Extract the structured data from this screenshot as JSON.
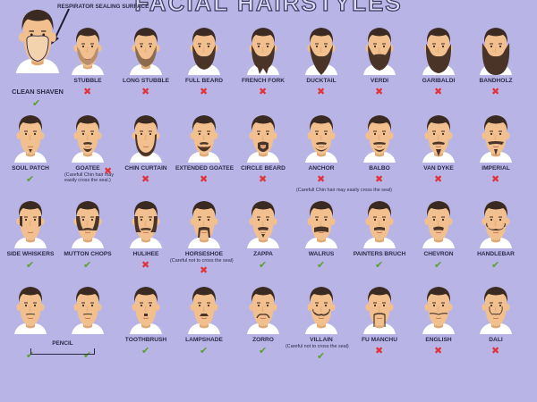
{
  "title": "FACIAL HAIRSTYLES",
  "callout": "RESPIRATOR SEALING SURFACE",
  "colors": {
    "background": "#b9b4e6",
    "skin": "#f1c08e",
    "skin_shadow": "#e2a872",
    "hair": "#3b2a22",
    "beard": "#4a3428",
    "shirt": "#ffffff",
    "ok": "#5aa02c",
    "no": "#e0343a",
    "respirator_area": "#f3d2ae"
  },
  "icons": {
    "ok": "check-icon",
    "no": "x-icon"
  },
  "clean_shaven": {
    "label": "CLEAN SHAVEN",
    "ok": true
  },
  "rows": [
    [
      {
        "label": "STUBBLE",
        "ok": false,
        "style": "stubble"
      },
      {
        "label": "LONG STUBBLE",
        "ok": false,
        "style": "longstubble"
      },
      {
        "label": "FULL BEARD",
        "ok": false,
        "style": "full"
      },
      {
        "label": "FRENCH FORK",
        "ok": false,
        "style": "fork"
      },
      {
        "label": "DUCKTAIL",
        "ok": false,
        "style": "ducktail"
      },
      {
        "label": "VERDI",
        "ok": false,
        "style": "verdi"
      },
      {
        "label": "GARIBALDI",
        "ok": false,
        "style": "garibaldi"
      },
      {
        "label": "BANDHOLZ",
        "ok": false,
        "style": "bandholz"
      }
    ],
    [
      {
        "label": "SOUL PATCH",
        "ok": true,
        "style": "soul"
      },
      {
        "label": "GOATEE",
        "ok": false,
        "style": "goatee",
        "note": "(Carefull Chin hair may\neasily cross the seal.)"
      },
      {
        "label": "CHIN CURTAIN",
        "ok": false,
        "style": "curtain"
      },
      {
        "label": "EXTENDED GOATEE",
        "ok": false,
        "style": "extgoatee"
      },
      {
        "label": "CIRCLE BEARD",
        "ok": false,
        "style": "circle"
      },
      {
        "label": "ANCHOR",
        "ok": false,
        "style": "anchor"
      },
      {
        "label": "BALBO",
        "ok": false,
        "style": "balbo"
      },
      {
        "label": "VAN DYKE",
        "ok": false,
        "style": "vandyke"
      },
      {
        "label": "IMPERIAL",
        "ok": false,
        "style": "imperial"
      }
    ],
    [
      {
        "label": "SIDE WHISKERS",
        "ok": true,
        "style": "whiskers"
      },
      {
        "label": "MUTTON CHOPS",
        "ok": true,
        "style": "mutton"
      },
      {
        "label": "HULIHEE",
        "ok": false,
        "style": "hulihee"
      },
      {
        "label": "HORSESHOE",
        "ok": false,
        "style": "horseshoe",
        "note": "(Careful not to cross the seal)"
      },
      {
        "label": "ZAPPA",
        "ok": true,
        "style": "zappa"
      },
      {
        "label": "WALRUS",
        "ok": true,
        "style": "walrus"
      },
      {
        "label": "PAINTERS BRUCH",
        "ok": true,
        "style": "painter"
      },
      {
        "label": "CHEVRON",
        "ok": true,
        "style": "chevron"
      },
      {
        "label": "HANDLEBAR",
        "ok": true,
        "style": "handlebar"
      }
    ],
    [
      {
        "label": "",
        "ok": true,
        "style": "pencil"
      },
      {
        "label": "",
        "ok": true,
        "style": "pencil2"
      },
      {
        "label": "TOOTHBRUSH",
        "ok": true,
        "style": "toothbrush"
      },
      {
        "label": "LAMPSHADE",
        "ok": true,
        "style": "lampshade"
      },
      {
        "label": "ZORRO",
        "ok": true,
        "style": "zorro"
      },
      {
        "label": "VILLAIN",
        "ok": true,
        "style": "villain",
        "note": "(Careful not to cross the seal)"
      },
      {
        "label": "FU MANCHU",
        "ok": false,
        "style": "fumanchu"
      },
      {
        "label": "ENGLISH",
        "ok": false,
        "style": "english"
      },
      {
        "label": "DALI",
        "ok": false,
        "style": "dali"
      }
    ]
  ],
  "pencil_label": "PENCIL",
  "anchor_note": "(Carefull Chin hair may easily cross the seal)"
}
